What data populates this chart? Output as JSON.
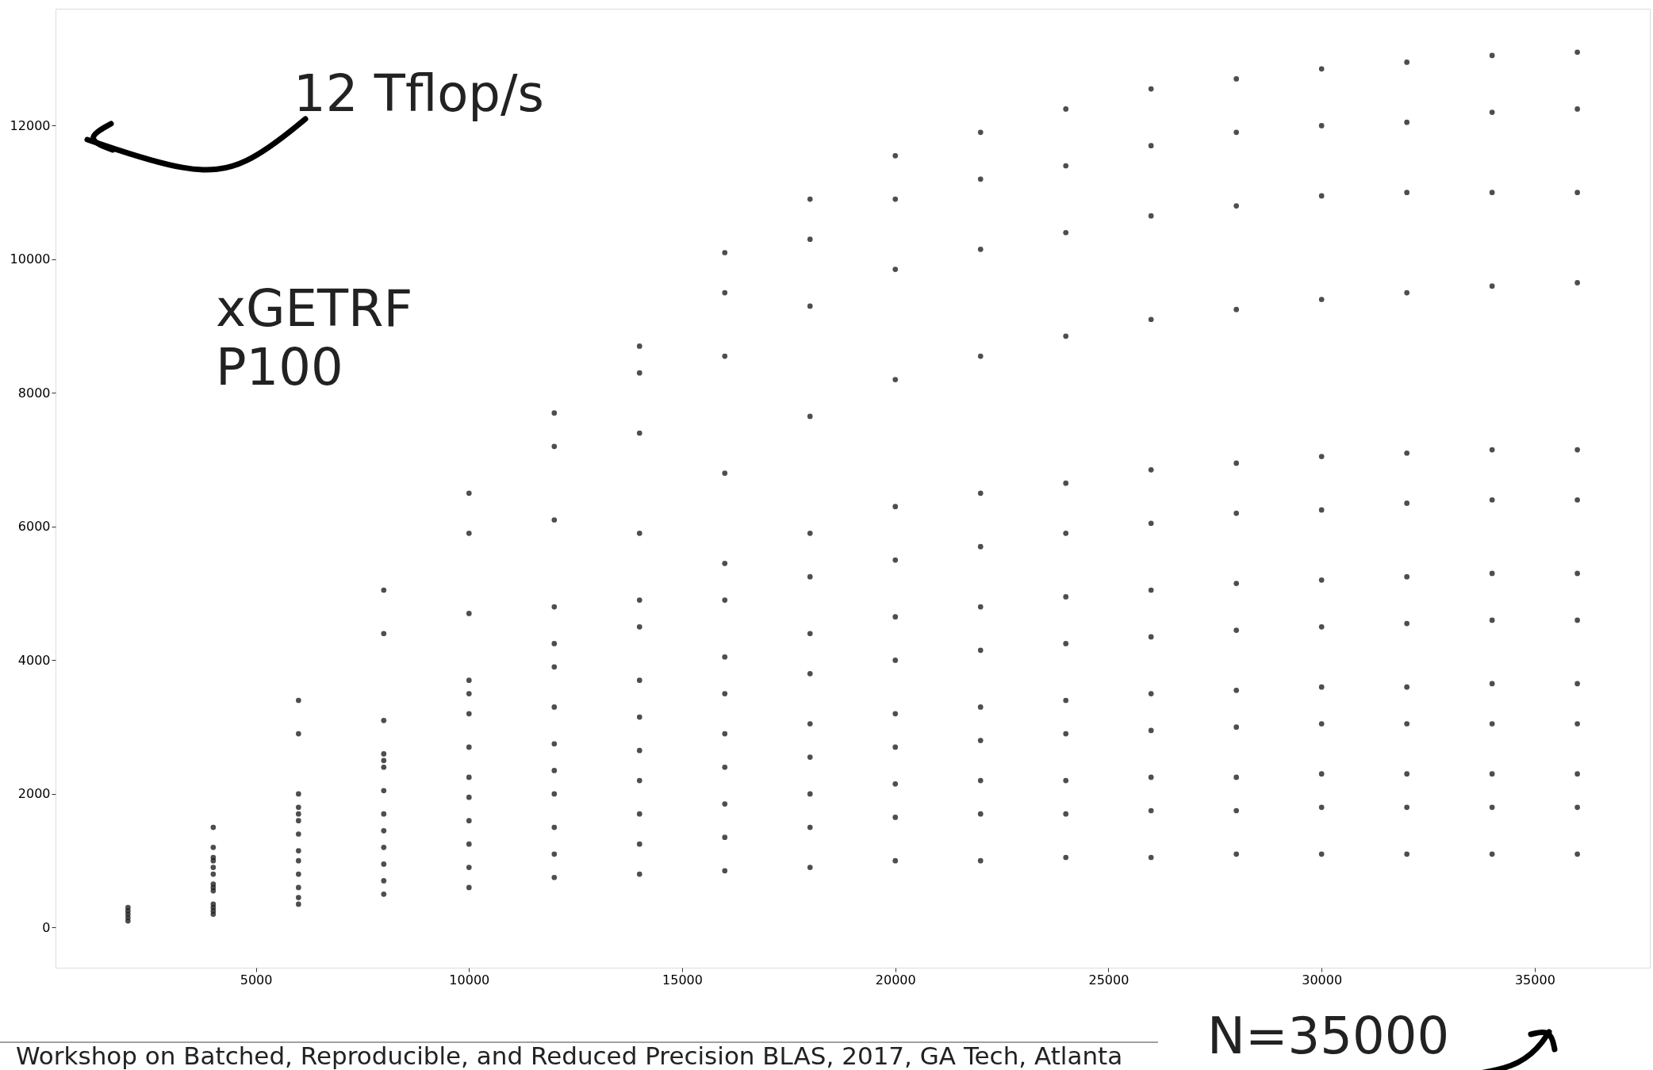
{
  "chart_data": {
    "type": "scatter",
    "marker": "circle",
    "grid": false,
    "legend": false,
    "xlim": [
      300,
      37700
    ],
    "ylim": [
      -600,
      13750
    ],
    "xticks": [
      5000,
      10000,
      15000,
      20000,
      25000,
      30000,
      35000
    ],
    "yticks": [
      0,
      2000,
      4000,
      6000,
      8000,
      10000,
      12000
    ],
    "annotations": [
      "12 Tflop/s",
      "xGETRF\nP100",
      "N=35000",
      "Workshop on Batched, Reproducible, and Reduced Precision BLAS, 2017, GA Tech, Atlanta"
    ],
    "series": [
      {
        "color": "#222222",
        "x": [
          2000,
          4000,
          6000,
          8000,
          10000,
          12000,
          14000,
          16000,
          18000,
          20000,
          22000,
          24000,
          26000,
          28000,
          30000,
          32000,
          34000,
          36000
        ],
        "values": [
          300,
          1500,
          3400,
          5050,
          6500,
          7700,
          8700,
          10100,
          10900,
          11550,
          11900,
          12250,
          12550,
          12700,
          12850,
          12950,
          13050,
          13100
        ]
      },
      {
        "color": "#222222",
        "x": [
          2000,
          4000,
          6000,
          8000,
          10000,
          12000,
          14000,
          16000,
          18000,
          20000,
          22000,
          24000,
          26000,
          28000,
          30000,
          32000,
          34000,
          36000
        ],
        "values": [
          250,
          1200,
          2900,
          4400,
          5900,
          7200,
          8300,
          9500,
          10300,
          10900,
          11200,
          11400,
          11700,
          11900,
          12000,
          12050,
          12200,
          12250
        ]
      },
      {
        "color": "#222222",
        "x": [
          4000,
          6000,
          8000,
          10000,
          12000,
          14000,
          16000,
          18000,
          20000,
          22000,
          24000,
          26000,
          28000,
          30000,
          32000,
          34000,
          36000
        ],
        "values": [
          1000,
          2000,
          3100,
          4700,
          6100,
          7400,
          8550,
          9300,
          9850,
          10150,
          10400,
          10650,
          10800,
          10950,
          11000,
          11000,
          11000
        ]
      },
      {
        "color": "#222222",
        "x": [
          4000,
          6000,
          8000,
          10000,
          12000,
          14000,
          16000,
          18000,
          20000,
          22000,
          24000,
          26000,
          28000,
          30000,
          32000,
          34000,
          36000
        ],
        "values": [
          800,
          1700,
          2500,
          3700,
          4800,
          5900,
          6800,
          7650,
          8200,
          8550,
          8850,
          9100,
          9250,
          9400,
          9500,
          9600,
          9650
        ]
      },
      {
        "color": "#222222",
        "x": [
          2000,
          4000,
          6000,
          8000,
          10000,
          12000,
          14000,
          16000,
          18000,
          20000,
          22000,
          24000,
          26000,
          28000,
          30000,
          32000,
          34000,
          36000
        ],
        "values": [
          200,
          1050,
          1800,
          2600,
          3500,
          4250,
          4900,
          5450,
          5900,
          6300,
          6500,
          6650,
          6850,
          6950,
          7050,
          7100,
          7150,
          7150
        ]
      },
      {
        "color": "#222222",
        "x": [
          4000,
          6000,
          8000,
          10000,
          12000,
          14000,
          16000,
          18000,
          20000,
          22000,
          24000,
          26000,
          28000,
          30000,
          32000,
          34000,
          36000
        ],
        "values": [
          900,
          1600,
          2400,
          3200,
          3900,
          4500,
          4900,
          5250,
          5500,
          5700,
          5900,
          6050,
          6200,
          6250,
          6350,
          6400,
          6400
        ]
      },
      {
        "color": "#222222",
        "x": [
          4000,
          6000,
          8000,
          10000,
          12000,
          14000,
          16000,
          18000,
          20000,
          22000,
          24000,
          26000,
          28000,
          30000,
          32000,
          34000,
          36000
        ],
        "values": [
          650,
          1400,
          2050,
          2700,
          3300,
          3700,
          4050,
          4400,
          4650,
          4800,
          4950,
          5050,
          5150,
          5200,
          5250,
          5300,
          5300
        ]
      },
      {
        "color": "#222222",
        "x": [
          4000,
          6000,
          8000,
          10000,
          12000,
          14000,
          16000,
          18000,
          20000,
          22000,
          24000,
          26000,
          28000,
          30000,
          32000,
          34000,
          36000
        ],
        "values": [
          600,
          1150,
          1700,
          2250,
          2750,
          3150,
          3500,
          3800,
          4000,
          4150,
          4250,
          4350,
          4450,
          4500,
          4550,
          4600,
          4600
        ]
      },
      {
        "color": "#222222",
        "x": [
          2000,
          4000,
          6000,
          8000,
          10000,
          12000,
          14000,
          16000,
          18000,
          20000,
          22000,
          24000,
          26000,
          28000,
          30000,
          32000,
          34000,
          36000
        ],
        "values": [
          150,
          550,
          1000,
          1450,
          1950,
          2350,
          2650,
          2900,
          3050,
          3200,
          3300,
          3400,
          3500,
          3550,
          3600,
          3600,
          3650,
          3650
        ]
      },
      {
        "color": "#222222",
        "x": [
          2000,
          4000,
          6000,
          8000,
          10000,
          12000,
          14000,
          16000,
          18000,
          20000,
          22000,
          24000,
          26000,
          28000,
          30000,
          32000,
          34000,
          36000
        ],
        "values": [
          100,
          350,
          800,
          1200,
          1600,
          2000,
          2200,
          2400,
          2550,
          2700,
          2800,
          2900,
          2950,
          3000,
          3050,
          3050,
          3050,
          3050
        ]
      },
      {
        "color": "#222222",
        "x": [
          4000,
          6000,
          8000,
          10000,
          12000,
          14000,
          16000,
          18000,
          20000,
          22000,
          24000,
          26000,
          28000,
          30000,
          32000,
          34000,
          36000
        ],
        "values": [
          300,
          600,
          950,
          1250,
          1500,
          1700,
          1850,
          2000,
          2150,
          2200,
          2200,
          2250,
          2250,
          2300,
          2300,
          2300,
          2300
        ]
      },
      {
        "color": "#222222",
        "x": [
          4000,
          6000,
          8000,
          10000,
          12000,
          14000,
          16000,
          18000,
          20000,
          22000,
          24000,
          26000,
          28000,
          30000,
          32000,
          34000,
          36000
        ],
        "values": [
          250,
          450,
          700,
          900,
          1100,
          1250,
          1350,
          1500,
          1650,
          1700,
          1700,
          1750,
          1750,
          1800,
          1800,
          1800,
          1800
        ]
      },
      {
        "color": "#222222",
        "x": [
          4000,
          6000,
          8000,
          10000,
          12000,
          14000,
          16000,
          18000,
          20000,
          22000,
          24000,
          26000,
          28000,
          30000,
          32000,
          34000,
          36000
        ],
        "values": [
          200,
          350,
          500,
          600,
          750,
          800,
          850,
          900,
          1000,
          1000,
          1050,
          1050,
          1100,
          1100,
          1100,
          1100,
          1100
        ]
      }
    ]
  }
}
